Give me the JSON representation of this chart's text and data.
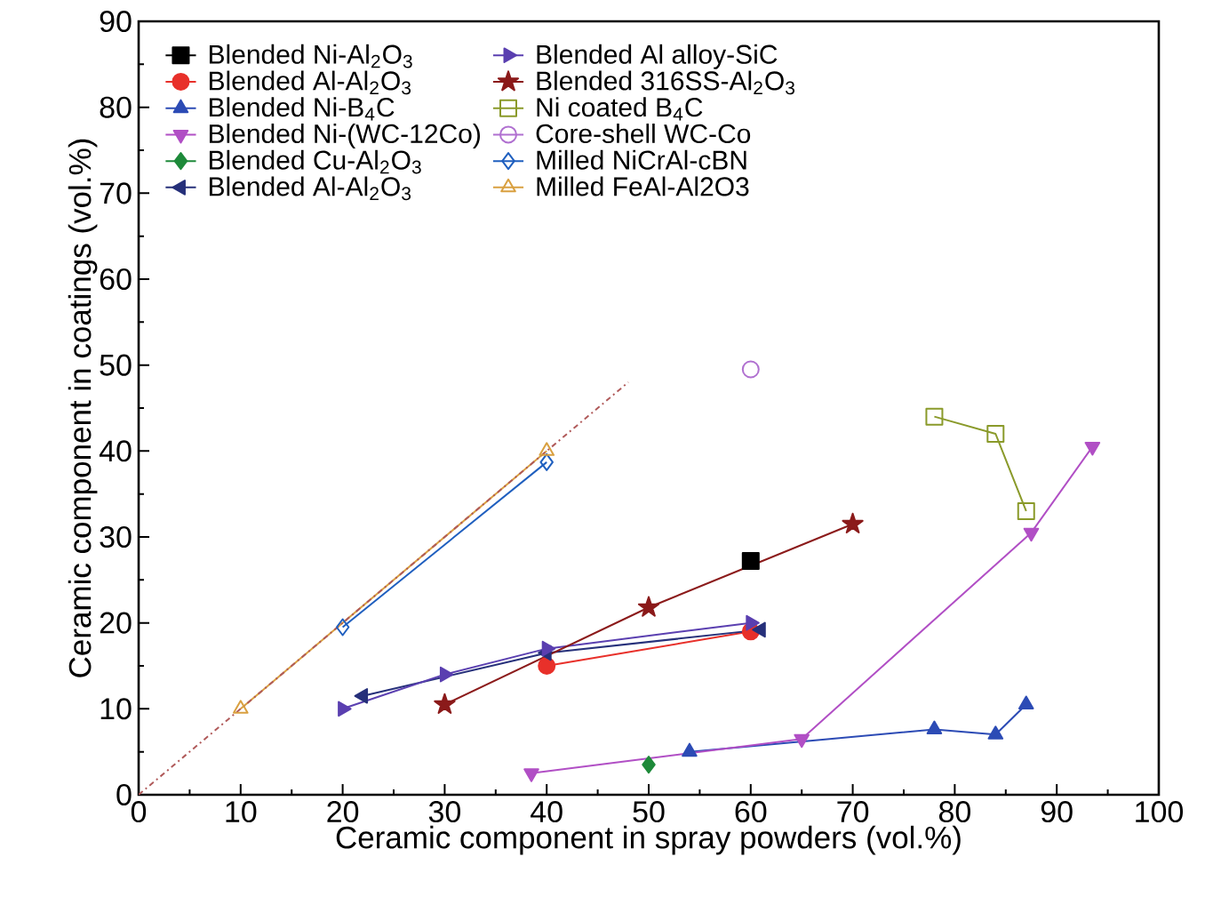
{
  "chart_data": {
    "type": "line",
    "xlabel": "Ceramic component in spray powders (vol.%)",
    "ylabel": "Ceramic component in coatings (vol.%)",
    "xlim": [
      0,
      100
    ],
    "ylim": [
      0,
      90
    ],
    "xticks": [
      0,
      10,
      20,
      30,
      40,
      50,
      60,
      70,
      80,
      90,
      100
    ],
    "yticks": [
      0,
      10,
      20,
      30,
      40,
      50,
      60,
      70,
      80,
      90
    ],
    "grid": false,
    "legend": "top left",
    "series": [
      {
        "name": "Blended Ni-Al$_{2}$O$_{3}$",
        "color": "#000000",
        "marker": "square",
        "x": [
          60
        ],
        "values": [
          27.2
        ]
      },
      {
        "name": "Blended Al-Al$_{2}$O$_{3}$",
        "color": "#e8302a",
        "marker": "circle",
        "x": [
          40,
          60
        ],
        "values": [
          15,
          19
        ]
      },
      {
        "name": "Blended Ni-B$_{4}$C",
        "color": "#2c4bb5",
        "marker": "triangle",
        "x": [
          54,
          78,
          84,
          87
        ],
        "values": [
          5,
          7.6,
          7,
          10.5
        ]
      },
      {
        "name": "Blended Ni-(WC-12Co)",
        "color": "#b14fc5",
        "marker": "triangle-down",
        "x": [
          38.5,
          65,
          87.5,
          93.5
        ],
        "values": [
          2.5,
          6.5,
          30.5,
          40.5
        ]
      },
      {
        "name": "Blended Cu-Al$_{2}$O$_{3}$",
        "color": "#1e8a3a",
        "marker": "diamond",
        "x": [
          50
        ],
        "values": [
          3.5
        ]
      },
      {
        "name": "Blended Al-Al$_{2}$O$_{3}$",
        "color": "#26307a",
        "marker": "triangle-left",
        "x": [
          22,
          40,
          61
        ],
        "values": [
          11.5,
          16.5,
          19.2
        ]
      },
      {
        "name": "Blended Al alloy-SiC",
        "color": "#5a3fb0",
        "marker": "triangle-right",
        "x": [
          20,
          30,
          40,
          60
        ],
        "values": [
          10,
          14,
          17,
          20
        ]
      },
      {
        "name": "Blended 316SS-Al$_{2}$O$_{3}$",
        "color": "#8b1a1a",
        "marker": "star",
        "x": [
          30,
          50,
          70
        ],
        "values": [
          10.5,
          21.8,
          31.5
        ]
      },
      {
        "name": "Ni coated B$_{4}$C",
        "color": "#8a9a2a",
        "marker": "square-open",
        "x": [
          78,
          84,
          87
        ],
        "values": [
          44,
          42,
          33
        ]
      },
      {
        "name": "Core-shell WC-Co",
        "color": "#b070d0",
        "marker": "circle-open",
        "x": [
          60
        ],
        "values": [
          49.5
        ]
      },
      {
        "name": "Milled NiCrAl-cBN",
        "color": "#1f5fbf",
        "marker": "diamond-open",
        "x": [
          20,
          40
        ],
        "values": [
          19.5,
          38.7
        ]
      },
      {
        "name": "Milled FeAl-Al2O3",
        "color": "#d9a040",
        "marker": "triangle-open",
        "x": [
          10,
          40
        ],
        "values": [
          10,
          40
        ]
      },
      {
        "color": "#b05a5a",
        "marker": "none",
        "line_style": "dashdot",
        "x": [
          0,
          48
        ],
        "values": [
          0,
          48
        ]
      }
    ]
  }
}
